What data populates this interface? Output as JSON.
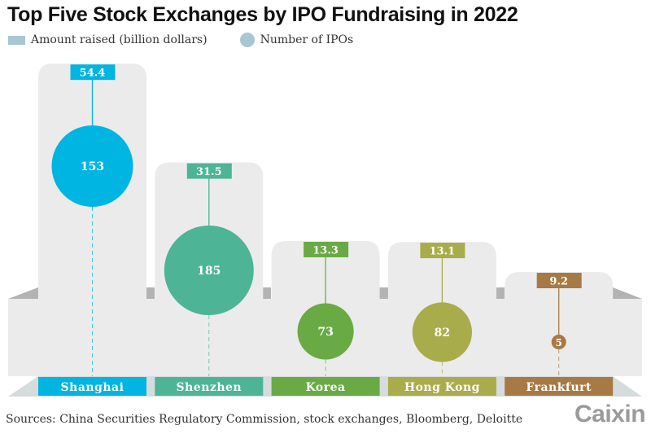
{
  "chart_data": {
    "type": "bubble-column",
    "title": "Top Five Stock Exchanges by IPO Fundraising in 2022",
    "legend": [
      {
        "label": "Amount raised (billion dollars)",
        "shape": "rect",
        "color": "#a9c6d3"
      },
      {
        "label": "Number of IPOs",
        "shape": "circle",
        "color": "#a9c6d3"
      }
    ],
    "legend_placement": "top-left",
    "categories": [
      "Shanghai",
      "Shenzhen",
      "Korea",
      "Hong Kong",
      "Frankfurt"
    ],
    "series": [
      {
        "name": "Amount raised (billion dollars)",
        "values": [
          54.4,
          31.5,
          13.3,
          13.1,
          9.2
        ],
        "labels": [
          "54.4",
          "31.5",
          "13.3",
          "13.1",
          "9.2"
        ]
      },
      {
        "name": "Number of IPOs",
        "values": [
          153,
          185,
          73,
          82,
          5
        ],
        "labels": [
          "153",
          "185",
          "73",
          "82",
          "5"
        ]
      }
    ],
    "colors": [
      "#00b5e2",
      "#4db596",
      "#6aaa45",
      "#a9ac4a",
      "#a77a45"
    ]
  },
  "source": "Sources: China Securities Regulatory Commission, stock exchanges, Bloomberg, Deloitte",
  "logo": "Caixin"
}
